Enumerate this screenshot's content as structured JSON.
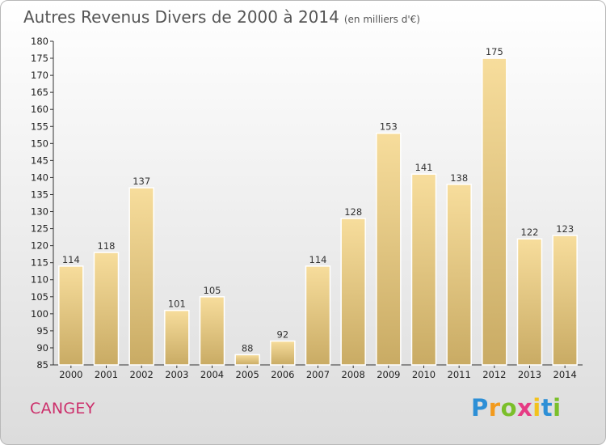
{
  "title": "Autres Revenus Divers de 2000 à 2014",
  "subtitle": "(en milliers d'€)",
  "commune": "CANGEY",
  "logo_text": "Proxiti",
  "colors": {
    "bar_light": "#f7dd9c",
    "bar_dark": "#c9ab64",
    "commune": "#cc2f6b",
    "title": "#555555"
  },
  "chart_data": {
    "type": "bar",
    "title": "Autres Revenus Divers de 2000 à 2014",
    "subtitle": "(en milliers d'€)",
    "xlabel": "",
    "ylabel": "",
    "categories": [
      "2000",
      "2001",
      "2002",
      "2003",
      "2004",
      "2005",
      "2006",
      "2007",
      "2008",
      "2009",
      "2010",
      "2011",
      "2012",
      "2013",
      "2014"
    ],
    "values": [
      114,
      118,
      137,
      101,
      105,
      88,
      92,
      114,
      128,
      153,
      141,
      138,
      175,
      122,
      123
    ],
    "ylim": [
      85,
      180
    ],
    "y_ticks": [
      85,
      90,
      95,
      100,
      105,
      110,
      115,
      120,
      125,
      130,
      135,
      140,
      145,
      150,
      155,
      160,
      165,
      170,
      175,
      180
    ],
    "grid": false,
    "legend": "none"
  }
}
